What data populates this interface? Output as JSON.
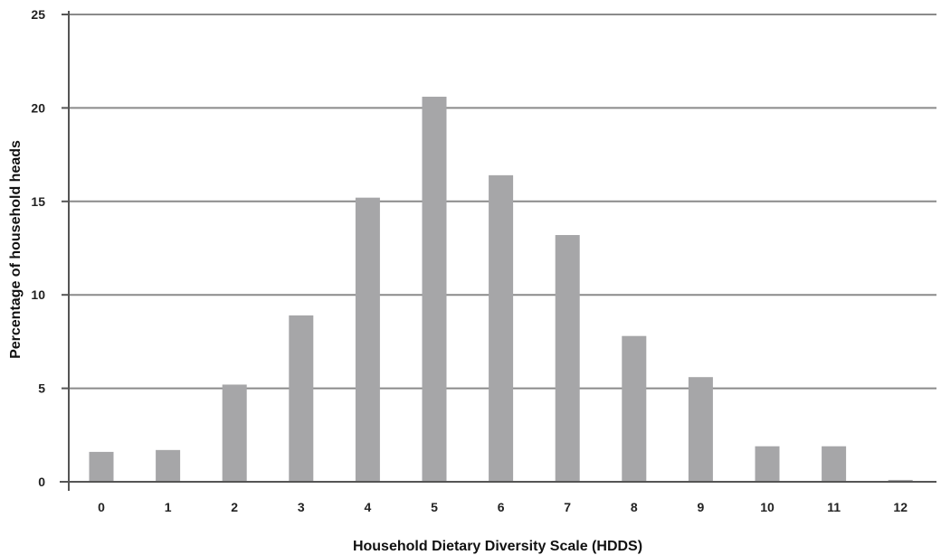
{
  "chart_data": {
    "type": "bar",
    "title": "",
    "xlabel": "Household Dietary Diversity Scale (HDDS)",
    "ylabel": "Percentage of household heads",
    "categories": [
      "0",
      "1",
      "2",
      "3",
      "4",
      "5",
      "6",
      "7",
      "8",
      "9",
      "10",
      "11",
      "12"
    ],
    "values": [
      1.6,
      1.7,
      5.2,
      8.9,
      15.2,
      20.6,
      16.4,
      13.2,
      7.8,
      5.6,
      1.9,
      1.9,
      0.1
    ],
    "ylim": [
      0,
      25
    ],
    "yticks": [
      "0",
      "5",
      "10",
      "15",
      "20",
      "25"
    ],
    "grid": true,
    "legend": "none",
    "bar_color": "#a6a6a8",
    "grid_color": "#8a8a8a",
    "axis_color": "#555555"
  }
}
